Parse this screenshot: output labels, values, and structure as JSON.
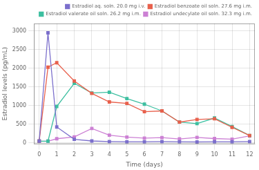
{
  "chart_data": {
    "type": "line",
    "xlabel": "Time (days)",
    "ylabel": "Estradiol levels (pg/mL)",
    "x": [
      0,
      0.5,
      1,
      2,
      3,
      4,
      5,
      6,
      7,
      8,
      9,
      10,
      11,
      12
    ],
    "series": [
      {
        "name": "Estradiol aq. soln. 20.0 mg i.v.",
        "color": "#7b6fcc",
        "values": [
          50,
          2950,
          430,
          100,
          55,
          40,
          35,
          35,
          40,
          35,
          30,
          35,
          35,
          40
        ]
      },
      {
        "name": "Estradiol benzoate oil soln. 27.6 mg i.m.",
        "color": "#e8604c",
        "values": [
          50,
          2030,
          2150,
          1660,
          1330,
          1100,
          1060,
          840,
          860,
          560,
          630,
          650,
          420,
          200
        ]
      },
      {
        "name": "Estradiol valerate oil soln. 26.2 mg i.m.",
        "color": "#3dbfa0",
        "values": [
          50,
          50,
          980,
          1600,
          1340,
          1360,
          1190,
          1040,
          860,
          560,
          520,
          670,
          440,
          200
        ]
      },
      {
        "name": "Estradiol undecylate oil soln. 32.3 mg i.m.",
        "color": "#cc80d4",
        "values": [
          50,
          50,
          115,
          165,
          390,
          210,
          160,
          130,
          145,
          110,
          150,
          120,
          105,
          190
        ]
      }
    ],
    "xlim": [
      -0.3,
      12.3
    ],
    "ylim": [
      -30,
      3200
    ],
    "xticks": [
      0,
      1,
      2,
      3,
      4,
      5,
      6,
      7,
      8,
      9,
      10,
      11,
      12
    ],
    "yticks": [
      0,
      500,
      1000,
      1500,
      2000,
      2500,
      3000
    ],
    "marker": "square",
    "line_style": "solid",
    "grid": true,
    "legend": "upper right"
  }
}
